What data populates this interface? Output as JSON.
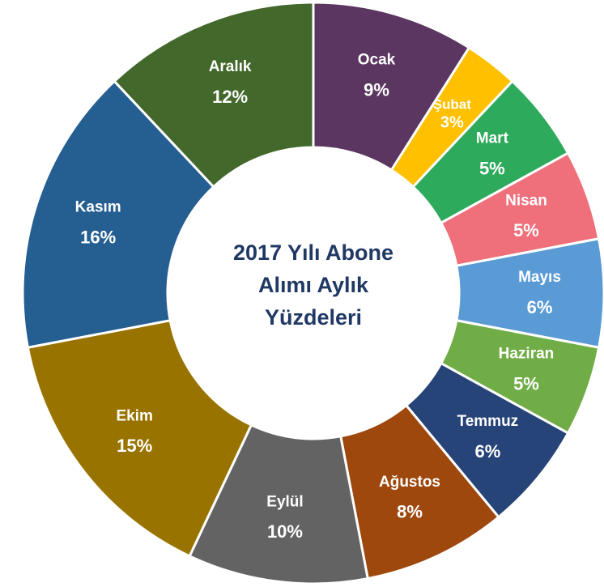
{
  "chart_data": {
    "type": "donut",
    "title": "2017 Yılı Abone Alımı Aylık Yüzdeleri",
    "categories": [
      "Ocak",
      "Şubat",
      "Mart",
      "Nisan",
      "Mayıs",
      "Haziran",
      "Temmuz",
      "Ağustos",
      "Eylül",
      "Ekim",
      "Kasım",
      "Aralık"
    ],
    "values": [
      9,
      3,
      5,
      5,
      6,
      5,
      6,
      8,
      10,
      15,
      16,
      12
    ],
    "value_labels": [
      "9%",
      "3%",
      "5%",
      "5%",
      "6%",
      "5%",
      "6%",
      "8%",
      "10%",
      "15%",
      "16%",
      "12%"
    ],
    "colors": [
      "#5b3660",
      "#ffc000",
      "#2eaa5c",
      "#ef6f7b",
      "#5b9bd5",
      "#70ad47",
      "#264478",
      "#9e480e",
      "#636363",
      "#997300",
      "#255e91",
      "#43682b"
    ]
  }
}
